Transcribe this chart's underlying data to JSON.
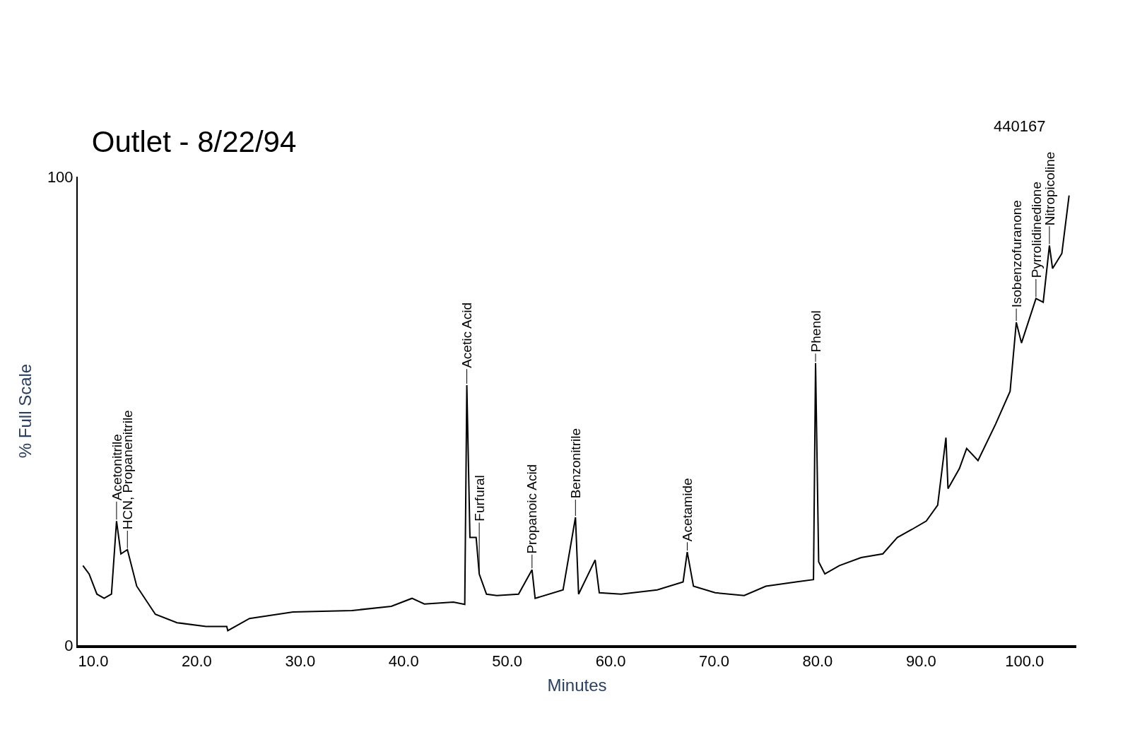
{
  "chart_data": {
    "type": "line",
    "title": "Outlet - 8/22/94",
    "xlabel": "Minutes",
    "ylabel": "% Full Scale",
    "x": [
      9.0,
      9.6,
      10.35,
      11.05,
      11.76,
      12.25,
      12.67,
      13.3,
      14.2,
      16.0,
      18.1,
      20.9,
      22.9,
      23.0,
      25.1,
      29.3,
      35.0,
      38.8,
      40.8,
      42.0,
      44.8,
      45.9,
      46.1,
      46.4,
      47.0,
      47.3,
      48.0,
      49.0,
      51.1,
      52.4,
      52.7,
      55.4,
      56.6,
      56.9,
      58.5,
      58.9,
      61.0,
      64.5,
      67.0,
      67.4,
      68.0,
      70.1,
      72.9,
      75.0,
      77.9,
      79.6,
      79.8,
      80.1,
      80.7,
      82.1,
      84.2,
      86.3,
      87.7,
      89.1,
      90.5,
      91.6,
      92.4,
      92.6,
      93.7,
      94.4,
      95.5,
      97.2,
      98.6,
      99.2,
      99.7,
      101.1,
      101.8,
      102.4,
      102.7,
      103.6,
      104.3
    ],
    "series": [
      {
        "color": "#000000",
        "values": [
          17.0,
          15.2,
          10.9,
          10.0,
          10.9,
          26.5,
          19.5,
          20.4,
          12.6,
          6.6,
          4.8,
          4.0,
          4.0,
          3.1,
          5.7,
          7.1,
          7.4,
          8.3,
          10.0,
          8.8,
          9.2,
          8.7,
          55.5,
          23.0,
          23.0,
          15.2,
          10.9,
          10.6,
          10.9,
          16.1,
          10.0,
          11.8,
          27.3,
          10.9,
          18.2,
          11.2,
          10.9,
          11.8,
          13.5,
          19.9,
          12.6,
          11.2,
          10.6,
          12.6,
          13.5,
          14.0,
          60.2,
          17.8,
          15.2,
          17.0,
          18.7,
          19.5,
          23.0,
          24.7,
          26.5,
          29.9,
          44.3,
          33.4,
          37.7,
          42.0,
          39.4,
          47.2,
          54.2,
          68.9,
          64.5,
          74.0,
          73.2,
          85.3,
          80.4,
          83.6,
          96.0
        ]
      }
    ],
    "xlim": [
      8.5,
      105
    ],
    "ylim": [
      0,
      100
    ],
    "xticks": [
      {
        "value": 10,
        "label": "10.0"
      },
      {
        "value": 20,
        "label": "20.0"
      },
      {
        "value": 30,
        "label": "30.0"
      },
      {
        "value": 40,
        "label": "40.0"
      },
      {
        "value": 50,
        "label": "50.0"
      },
      {
        "value": 60,
        "label": "60.0"
      },
      {
        "value": 70,
        "label": "70.0"
      },
      {
        "value": 80,
        "label": "80.0"
      },
      {
        "value": 90,
        "label": "90.0"
      },
      {
        "value": 100,
        "label": "100.0"
      }
    ],
    "yticks": [
      0,
      100
    ],
    "grid": false,
    "legend": false,
    "marker": "none",
    "line_style": "solid",
    "annotations": [
      "440167",
      {
        "text": "Acetonitrile",
        "x": 12.25,
        "y": 26.5
      },
      {
        "text": "HCN, Propanenitrile",
        "x": 13.3,
        "y": 20.4
      },
      {
        "text": "Acetic Acid",
        "x": 46.1,
        "y": 55.5
      },
      {
        "text": "Furfural",
        "x": 47.3,
        "y": 15.2
      },
      {
        "text": "Propanoic Acid",
        "x": 52.4,
        "y": 16.1
      },
      {
        "text": "Benzonitrile",
        "x": 56.6,
        "y": 27.3
      },
      {
        "text": "Acetamide",
        "x": 67.4,
        "y": 19.9
      },
      {
        "text": "Phenol",
        "x": 79.8,
        "y": 60.2
      },
      {
        "text": "Isobenzofuranone",
        "x": 99.2,
        "y": 68.9
      },
      {
        "text": "Pyrrolidinedione",
        "x": 101.1,
        "y": 74.0
      },
      {
        "text": "Nitropicoline",
        "x": 102.4,
        "y": 85.3
      }
    ]
  }
}
